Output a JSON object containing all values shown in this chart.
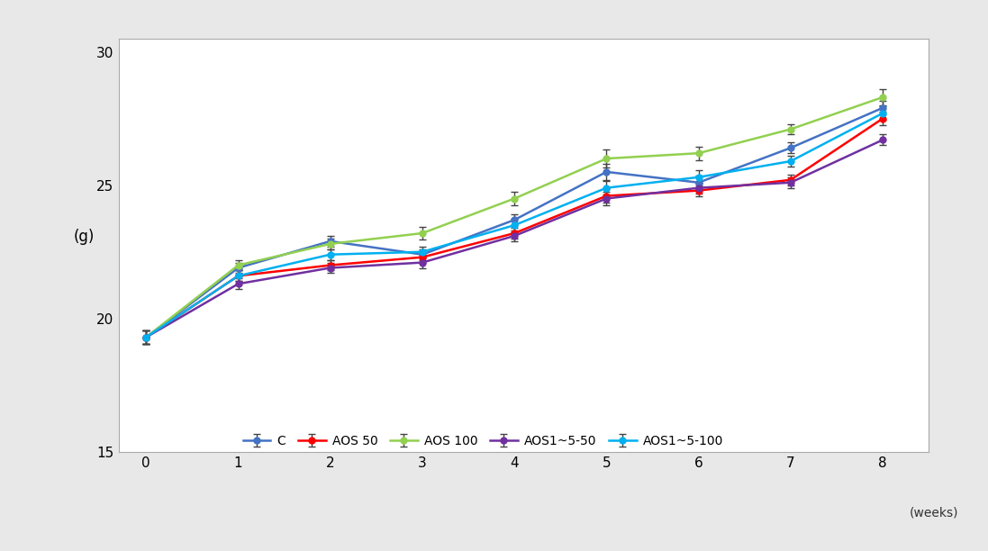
{
  "weeks": [
    0,
    1,
    2,
    3,
    4,
    5,
    6,
    7,
    8
  ],
  "series": {
    "C": {
      "values": [
        19.3,
        21.9,
        22.9,
        22.4,
        23.7,
        25.5,
        25.1,
        26.4,
        27.9
      ],
      "errors": [
        0.25,
        0.2,
        0.2,
        0.2,
        0.2,
        0.3,
        0.25,
        0.2,
        0.25
      ],
      "color": "#4472C4",
      "marker": "o"
    },
    "AOS 50": {
      "values": [
        19.3,
        21.6,
        22.0,
        22.3,
        23.2,
        24.6,
        24.8,
        25.2,
        27.5
      ],
      "errors": [
        0.25,
        0.2,
        0.2,
        0.2,
        0.2,
        0.25,
        0.2,
        0.2,
        0.25
      ],
      "color": "#FF0000",
      "marker": "o"
    },
    "AOS 100": {
      "values": [
        19.3,
        22.0,
        22.8,
        23.2,
        24.5,
        26.0,
        26.2,
        27.1,
        28.3
      ],
      "errors": [
        0.25,
        0.2,
        0.2,
        0.25,
        0.25,
        0.35,
        0.25,
        0.2,
        0.3
      ],
      "color": "#92D050",
      "marker": "o"
    },
    "AOS1~5-50": {
      "values": [
        19.3,
        21.3,
        21.9,
        22.1,
        23.1,
        24.5,
        24.9,
        25.1,
        26.7
      ],
      "errors": [
        0.25,
        0.2,
        0.2,
        0.2,
        0.2,
        0.25,
        0.2,
        0.2,
        0.2
      ],
      "color": "#7030A0",
      "marker": "o"
    },
    "AOS1~5-100": {
      "values": [
        19.3,
        21.6,
        22.4,
        22.5,
        23.5,
        24.9,
        25.3,
        25.9,
        27.7
      ],
      "errors": [
        0.25,
        0.2,
        0.2,
        0.2,
        0.25,
        0.25,
        0.25,
        0.2,
        0.25
      ],
      "color": "#00B0F0",
      "marker": "o"
    }
  },
  "xlim": [
    -0.3,
    8.5
  ],
  "ylim": [
    15,
    30.5
  ],
  "yticks": [
    15,
    20,
    25,
    30
  ],
  "xticks": [
    0,
    1,
    2,
    3,
    4,
    5,
    6,
    7,
    8
  ],
  "ylabel": "(g)",
  "xlabel_note": "(weeks)",
  "legend_order": [
    "C",
    "AOS 50",
    "AOS 100",
    "AOS1~5-50",
    "AOS1~5-100"
  ],
  "fig_bg_color": "#e8e8e8",
  "plot_bg_color": "#ffffff",
  "linewidth": 1.8,
  "markersize": 5,
  "capsize": 3
}
